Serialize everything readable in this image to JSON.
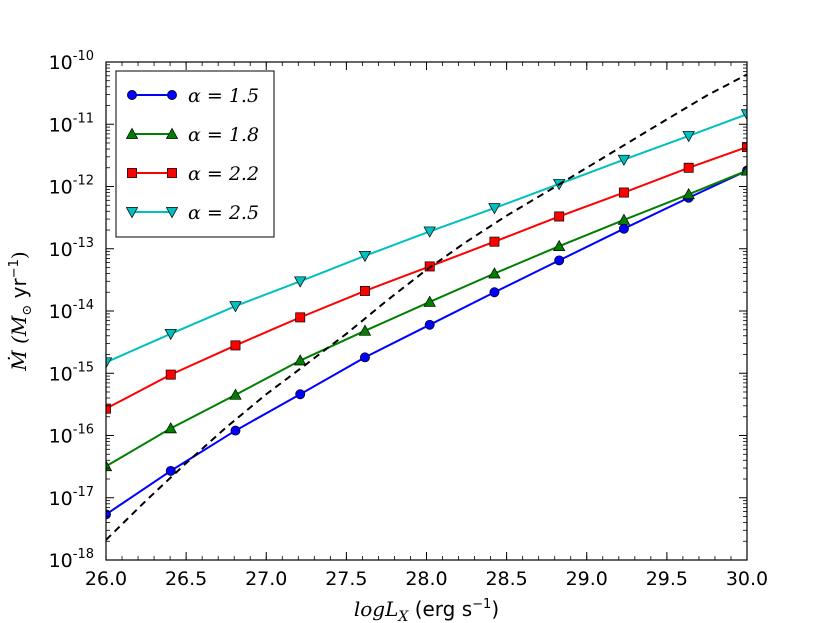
{
  "chart_data": {
    "type": "line",
    "xlabel": "logL_X (erg s^-1)",
    "xlabel_parts": {
      "math": "logL",
      "sub": "X",
      "unit": "(erg s",
      "unit_exp": "−1",
      "unit_end": ")"
    },
    "ylabel": "Ṁ (M⊙ yr^-1)",
    "ylabel_parts": {
      "math": "Ṁ",
      "unit_open": "(M",
      "unit_sun": "⊙",
      "unit": " yr",
      "unit_exp": "−1",
      "unit_end": ")"
    },
    "xlim": [
      26.0,
      30.0
    ],
    "ylim_log10": [
      -18,
      -10
    ],
    "yscale": "log",
    "grid": false,
    "legend_position": "top-left",
    "x_ticks": [
      "26.0",
      "26.5",
      "27.0",
      "27.5",
      "28.0",
      "28.5",
      "29.0",
      "29.5",
      "30.0"
    ],
    "y_ticks": [
      {
        "base": "10",
        "exp": "-18"
      },
      {
        "base": "10",
        "exp": "-17"
      },
      {
        "base": "10",
        "exp": "-16"
      },
      {
        "base": "10",
        "exp": "-15"
      },
      {
        "base": "10",
        "exp": "-14"
      },
      {
        "base": "10",
        "exp": "-13"
      },
      {
        "base": "10",
        "exp": "-12"
      },
      {
        "base": "10",
        "exp": "-11"
      },
      {
        "base": "10",
        "exp": "-10"
      }
    ],
    "x": [
      26.0,
      26.4,
      26.8,
      27.2,
      27.6,
      28.0,
      28.4,
      28.8,
      29.2,
      29.6,
      30.0
    ],
    "series": [
      {
        "name": "α = 1.5",
        "color": "#0000ff",
        "marker": "circle",
        "line": "solid",
        "x": [
          26.0,
          26.404,
          26.808,
          27.212,
          27.616,
          28.02,
          28.424,
          28.828,
          29.232,
          29.636,
          30.0
        ],
        "y": [
          5.4e-18,
          2.7e-17,
          1.2e-16,
          4.6e-16,
          1.8e-15,
          6e-15,
          2e-14,
          6.5e-14,
          2.1e-13,
          6.6e-13,
          1.8e-12
        ]
      },
      {
        "name": "α = 1.8",
        "color": "#007f00",
        "marker": "triangle-up",
        "line": "solid",
        "x": [
          26.0,
          26.404,
          26.808,
          27.212,
          27.616,
          28.02,
          28.424,
          28.828,
          29.232,
          29.636,
          30.0
        ],
        "y": [
          3.2e-17,
          1.3e-16,
          4.5e-16,
          1.6e-15,
          4.8e-15,
          1.4e-14,
          4e-14,
          1.1e-13,
          2.9e-13,
          7.5e-13,
          1.8e-12
        ]
      },
      {
        "name": "α = 2.2",
        "color": "#ff0000",
        "marker": "square",
        "line": "solid",
        "x": [
          26.0,
          26.404,
          26.808,
          27.212,
          27.616,
          28.02,
          28.424,
          28.828,
          29.232,
          29.636,
          30.0
        ],
        "y": [
          2.7e-16,
          9.5e-16,
          2.8e-15,
          7.9e-15,
          2.1e-14,
          5.2e-14,
          1.3e-13,
          3.3e-13,
          8e-13,
          2e-12,
          4.3e-12
        ]
      },
      {
        "name": "α = 2.5",
        "color": "#00bfbf",
        "marker": "triangle-down",
        "line": "solid",
        "x": [
          26.0,
          26.404,
          26.808,
          27.212,
          27.616,
          28.02,
          28.424,
          28.828,
          29.232,
          29.636,
          30.0
        ],
        "y": [
          1.5e-15,
          4.3e-15,
          1.2e-14,
          3e-14,
          7.7e-14,
          1.9e-13,
          4.5e-13,
          1.1e-12,
          2.7e-12,
          6.5e-12,
          1.45e-11
        ]
      },
      {
        "name": "",
        "color": "#000000",
        "marker": "none",
        "line": "dashed",
        "x": [
          26.0,
          26.25,
          26.5,
          26.75,
          27.0,
          27.25,
          27.5,
          27.75,
          28.0,
          28.25,
          28.5,
          28.75,
          29.0,
          29.25,
          29.5,
          29.75,
          30.0
        ],
        "y": [
          2.1e-18,
          9e-18,
          3.6e-17,
          1.35e-16,
          4.6e-16,
          1.4e-15,
          4.3e-15,
          1.45e-14,
          4.6e-14,
          1.3e-13,
          3.4e-13,
          8.2e-13,
          2e-12,
          4.9e-12,
          1.2e-11,
          2.9e-11,
          6.3e-11
        ]
      }
    ]
  }
}
